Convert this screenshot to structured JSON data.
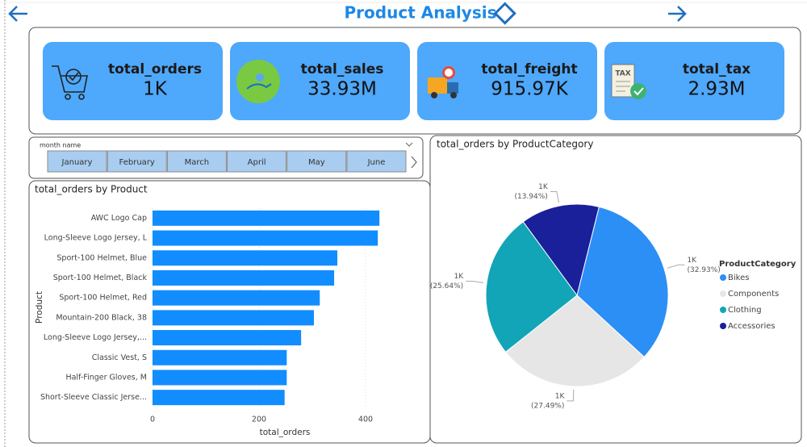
{
  "header": {
    "title": "Product Analysis"
  },
  "cards": [
    {
      "title": "total_orders",
      "value": "1K"
    },
    {
      "title": "total_sales",
      "value": "33.93M"
    },
    {
      "title": "total_freight",
      "value": "915.97K"
    },
    {
      "title": "total_tax",
      "value": "2.93M"
    }
  ],
  "slicer": {
    "label": "month name",
    "items": [
      "January",
      "February",
      "March",
      "April",
      "May",
      "June"
    ]
  },
  "chart_data": [
    {
      "type": "bar",
      "orientation": "horizontal",
      "title": "total_orders by Product",
      "categories": [
        "AWC Logo Cap",
        "Long-Sleeve Logo Jersey, L",
        "Sport-100 Helmet, Blue",
        "Sport-100 Helmet, Black",
        "Sport-100 Helmet, Red",
        "Mountain-200 Black, 38",
        "Long-Sleeve Logo Jersey,...",
        "Classic Vest, S",
        "Half-Finger Gloves, M",
        "Short-Sleeve Classic Jerse..."
      ],
      "values": [
        426,
        423,
        347,
        341,
        314,
        303,
        279,
        252,
        252,
        248
      ],
      "color": "#118dff",
      "xlim": [
        0,
        500
      ],
      "xticks": [
        0,
        200,
        400
      ],
      "xlabel": "total_orders",
      "ylabel": "Product",
      "grid": true
    },
    {
      "type": "pie",
      "title": "total_orders by ProductCategory",
      "categories": [
        "Bikes",
        "Components",
        "Clothing",
        "Accessories"
      ],
      "values": [
        32.93,
        27.49,
        25.64,
        13.94
      ],
      "count_labels": [
        "1K",
        "1K",
        "1K",
        "1K"
      ],
      "value_labels": [
        "(32.93%)",
        "(27.49%)",
        "(25.64%)",
        "(13.94%)"
      ],
      "colors": [
        "#2b8ff5",
        "#e6e6e6",
        "#12a5b8",
        "#1a1f9a"
      ],
      "legend_title": "ProductCategory",
      "legend": "right"
    }
  ]
}
